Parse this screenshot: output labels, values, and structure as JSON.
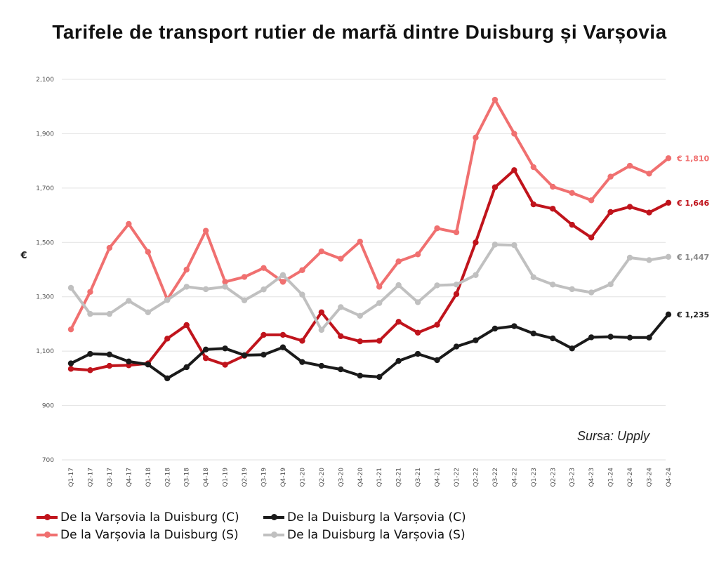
{
  "chart_data": {
    "type": "line",
    "title": "Tarifele de transport rutier de marfă dintre Duisburg și Varșovia",
    "xlabel": "",
    "ylabel": "€",
    "ylim": [
      700,
      2100
    ],
    "yticks": [
      700,
      900,
      1100,
      1300,
      1500,
      1700,
      1900,
      2100
    ],
    "ytick_labels": [
      "700",
      "900",
      "1,100",
      "1,300",
      "1,500",
      "1,700",
      "1,900",
      "2,100"
    ],
    "grid": "horizontal",
    "legend_position": "bottom-left",
    "source": "Sursa: Upply",
    "categories": [
      "Q1-17",
      "Q2-17",
      "Q3-17",
      "Q4-17",
      "Q1-18",
      "Q2-18",
      "Q3-18",
      "Q4-18",
      "Q1-19",
      "Q2-19",
      "Q3-19",
      "Q4-19",
      "Q1-20",
      "Q2-20",
      "Q3-20",
      "Q4-20",
      "Q1-21",
      "Q2-21",
      "Q3-21",
      "Q4-21",
      "Q1-22",
      "Q2-22",
      "Q3-22",
      "Q4-22",
      "Q1-23",
      "Q2-23",
      "Q3-23",
      "Q4-23",
      "Q1-24",
      "Q2-24",
      "Q3-24",
      "Q4-24"
    ],
    "series": [
      {
        "name": "De la Varșovia la Duisburg (S)",
        "color": "#f07070",
        "end_label": "€ 1,810",
        "values": [
          1180,
          1318,
          1480,
          1568,
          1465,
          1290,
          1400,
          1543,
          1355,
          1373,
          1406,
          1355,
          1398,
          1467,
          1440,
          1503,
          1337,
          1430,
          1456,
          1552,
          1537,
          1886,
          2025,
          1900,
          1777,
          1705,
          1682,
          1655,
          1742,
          1782,
          1753,
          1810
        ]
      },
      {
        "name": "De la Varșovia la Duisburg (C)",
        "color": "#c0141c",
        "end_label": "€ 1,646",
        "values": [
          1035,
          1030,
          1046,
          1048,
          1055,
          1146,
          1196,
          1074,
          1050,
          1083,
          1160,
          1160,
          1138,
          1243,
          1155,
          1136,
          1138,
          1208,
          1168,
          1197,
          1310,
          1500,
          1703,
          1766,
          1640,
          1624,
          1565,
          1518,
          1612,
          1631,
          1610,
          1646
        ]
      },
      {
        "name": "De la Duisburg la Varșovia (S)",
        "color": "#c0c0c0",
        "end_label": "€ 1,447",
        "values": [
          1333,
          1237,
          1237,
          1285,
          1243,
          1288,
          1337,
          1328,
          1337,
          1287,
          1327,
          1380,
          1308,
          1178,
          1262,
          1230,
          1277,
          1343,
          1280,
          1342,
          1345,
          1380,
          1492,
          1490,
          1372,
          1345,
          1328,
          1316,
          1346,
          1444,
          1435,
          1447
        ]
      },
      {
        "name": "De la Duisburg la Varșovia (C)",
        "color": "#1a1a1a",
        "end_label": "€ 1,235",
        "values": [
          1055,
          1090,
          1088,
          1062,
          1051,
          1000,
          1041,
          1106,
          1110,
          1085,
          1087,
          1114,
          1060,
          1046,
          1033,
          1010,
          1005,
          1064,
          1090,
          1067,
          1117,
          1140,
          1183,
          1192,
          1165,
          1147,
          1110,
          1151,
          1153,
          1150,
          1150,
          1235
        ]
      }
    ],
    "legend": [
      {
        "label": "De la Varșovia la Duisburg (C)",
        "color": "#c0141c"
      },
      {
        "label": "De la Duisburg la Varșovia (C)",
        "color": "#1a1a1a"
      },
      {
        "label": "De la Varșovia la Duisburg (S)",
        "color": "#f07070"
      },
      {
        "label": "De la Duisburg la Varșovia (S)",
        "color": "#c0c0c0"
      }
    ]
  }
}
